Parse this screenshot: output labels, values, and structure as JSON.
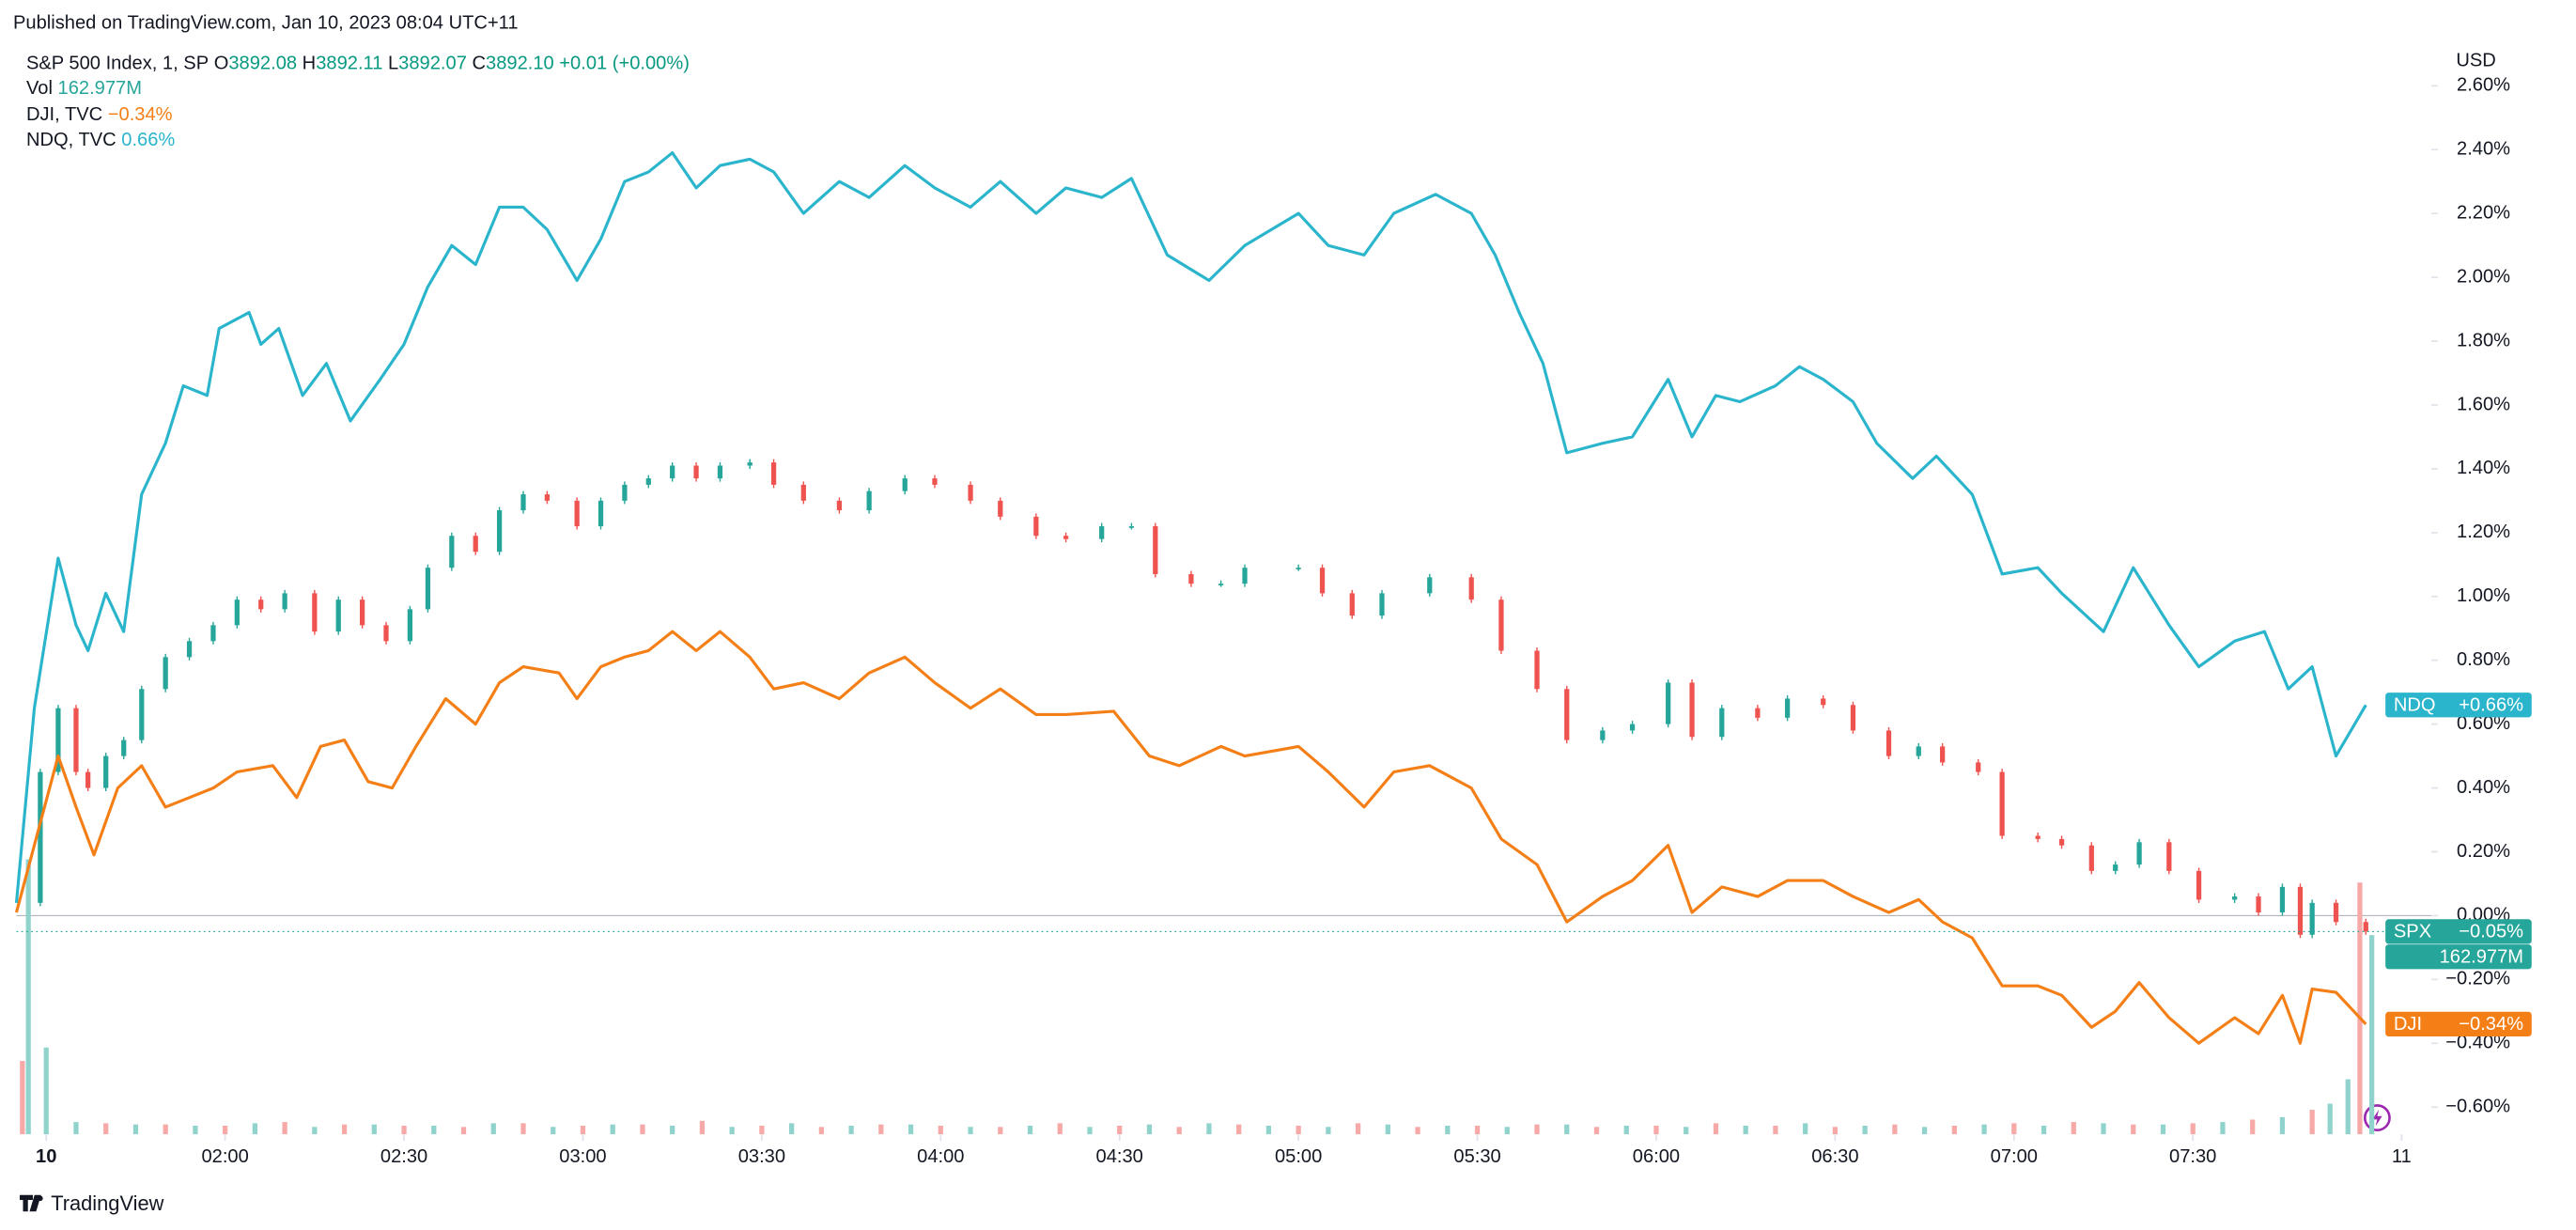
{
  "header": "Published on TradingView.com, Jan 10, 2023 08:04 UTC+11",
  "brand": "TradingView",
  "chart_data": {
    "type": "line",
    "currency": "USD",
    "main_legend": {
      "name": "S&P 500 Index, 1, SP",
      "ohlc": [
        [
          "O",
          "3892.08"
        ],
        [
          "H",
          "3892.11"
        ],
        [
          "L",
          "3892.07"
        ],
        [
          "C",
          "3892.10"
        ]
      ],
      "change": "+0.01 (+0.00%)"
    },
    "xlim": [
      -5,
      400
    ],
    "xticks": [
      {
        "value": 0,
        "label": "10"
      },
      {
        "value": 30,
        "label": "02:00"
      },
      {
        "value": 60,
        "label": "02:30"
      },
      {
        "value": 90,
        "label": "03:00"
      },
      {
        "value": 120,
        "label": "03:30"
      },
      {
        "value": 150,
        "label": "04:00"
      },
      {
        "value": 180,
        "label": "04:30"
      },
      {
        "value": 210,
        "label": "05:00"
      },
      {
        "value": 240,
        "label": "05:30"
      },
      {
        "value": 270,
        "label": "06:00"
      },
      {
        "value": 300,
        "label": "06:30"
      },
      {
        "value": 330,
        "label": "07:00"
      },
      {
        "value": 360,
        "label": "07:30"
      },
      {
        "value": 395,
        "label": "11"
      }
    ],
    "ylim": [
      -0.685,
      2.713
    ],
    "yticks": [
      {
        "value": 2.6,
        "label": "2.60%"
      },
      {
        "value": 2.4,
        "label": "2.40%"
      },
      {
        "value": 2.2,
        "label": "2.20%"
      },
      {
        "value": 2.0,
        "label": "2.00%"
      },
      {
        "value": 1.8,
        "label": "1.80%"
      },
      {
        "value": 1.6,
        "label": "1.60%"
      },
      {
        "value": 1.4,
        "label": "1.40%"
      },
      {
        "value": 1.2,
        "label": "1.20%"
      },
      {
        "value": 1.0,
        "label": "1.00%"
      },
      {
        "value": 0.8,
        "label": "0.80%"
      },
      {
        "value": 0.6,
        "label": "0.60%"
      },
      {
        "value": 0.4,
        "label": "0.40%"
      },
      {
        "value": 0.2,
        "label": "0.20%"
      },
      {
        "value": 0,
        "label": "0.00%"
      },
      {
        "value": -0.2,
        "label": "−0.20%"
      },
      {
        "value": -0.4,
        "label": "−0.40%"
      },
      {
        "value": -0.6,
        "label": "−0.60%"
      }
    ],
    "series": [
      {
        "name": "SPX",
        "type": "candlestick",
        "color": "#26a69a",
        "down_color": "#ef5350",
        "tag_value": "−0.05%",
        "x": [
          -4,
          -1,
          2,
          5,
          7,
          10,
          13,
          16,
          20,
          24,
          28,
          32,
          36,
          40,
          45,
          49,
          53,
          57,
          61,
          64,
          68,
          72,
          76,
          80,
          84,
          89,
          93,
          97,
          101,
          105,
          109,
          113,
          118,
          122,
          127,
          133,
          138,
          144,
          149,
          155,
          160,
          166,
          171,
          177,
          182,
          186,
          192,
          197,
          201,
          210,
          214,
          219,
          224,
          232,
          239,
          244,
          250,
          255,
          261,
          266,
          272,
          276,
          281,
          287,
          292,
          298,
          303,
          309,
          314,
          318,
          324,
          328,
          334,
          338,
          343,
          347,
          351,
          356,
          361,
          367,
          371,
          375,
          378,
          380,
          384,
          389
        ],
        "values": [
          0.04,
          0.45,
          0.65,
          0.45,
          0.4,
          0.5,
          0.55,
          0.71,
          0.81,
          0.86,
          0.91,
          0.99,
          0.96,
          1.01,
          0.89,
          0.99,
          0.91,
          0.86,
          0.96,
          1.09,
          1.19,
          1.14,
          1.27,
          1.32,
          1.3,
          1.22,
          1.3,
          1.35,
          1.37,
          1.41,
          1.37,
          1.41,
          1.42,
          1.35,
          1.3,
          1.27,
          1.33,
          1.37,
          1.35,
          1.3,
          1.25,
          1.19,
          1.18,
          1.22,
          1.22,
          1.07,
          1.04,
          1.04,
          1.09,
          1.09,
          1.01,
          0.94,
          1.01,
          1.06,
          0.99,
          0.83,
          0.71,
          0.55,
          0.58,
          0.6,
          0.73,
          0.56,
          0.65,
          0.62,
          0.68,
          0.66,
          0.58,
          0.5,
          0.53,
          0.48,
          0.45,
          0.25,
          0.24,
          0.22,
          0.14,
          0.16,
          0.23,
          0.14,
          0.05,
          0.06,
          0.01,
          0.09,
          -0.06,
          0.04,
          -0.02,
          -0.05
        ]
      },
      {
        "name": "DJI",
        "legend_name": "DJI, TVC",
        "legend_value": "−0.34%",
        "type": "line",
        "color": "#f57f17",
        "tag_value": "−0.34%",
        "x": [
          -5,
          -1,
          2,
          5,
          8,
          12,
          16,
          20,
          24,
          28,
          32,
          38,
          42,
          46,
          50,
          54,
          58,
          62,
          67,
          72,
          76,
          80,
          86,
          89,
          93,
          97,
          101,
          105,
          109,
          113,
          118,
          122,
          127,
          133,
          138,
          144,
          149,
          155,
          160,
          166,
          171,
          179,
          185,
          190,
          197,
          201,
          210,
          215,
          221,
          226,
          232,
          239,
          244,
          250,
          255,
          261,
          266,
          272,
          276,
          281,
          287,
          292,
          298,
          303,
          309,
          314,
          318,
          323,
          328,
          334,
          338,
          343,
          347,
          351,
          356,
          361,
          367,
          371,
          375,
          378,
          380,
          384,
          389
        ],
        "values": [
          0.01,
          0.29,
          0.5,
          0.34,
          0.19,
          0.4,
          0.47,
          0.34,
          0.37,
          0.4,
          0.45,
          0.47,
          0.37,
          0.53,
          0.55,
          0.42,
          0.4,
          0.53,
          0.68,
          0.6,
          0.73,
          0.78,
          0.76,
          0.68,
          0.78,
          0.81,
          0.83,
          0.89,
          0.83,
          0.89,
          0.81,
          0.71,
          0.73,
          0.68,
          0.76,
          0.81,
          0.73,
          0.65,
          0.71,
          0.63,
          0.63,
          0.64,
          0.5,
          0.47,
          0.53,
          0.5,
          0.53,
          0.45,
          0.34,
          0.45,
          0.47,
          0.4,
          0.24,
          0.16,
          -0.02,
          0.06,
          0.11,
          0.22,
          0.01,
          0.09,
          0.06,
          0.11,
          0.11,
          0.06,
          0.01,
          0.05,
          -0.02,
          -0.07,
          -0.22,
          -0.22,
          -0.25,
          -0.35,
          -0.3,
          -0.21,
          -0.32,
          -0.4,
          -0.32,
          -0.37,
          -0.25,
          -0.4,
          -0.23,
          -0.24,
          -0.34
        ]
      },
      {
        "name": "NDQ",
        "legend_name": "NDQ, TVC",
        "legend_value": "0.66%",
        "type": "line",
        "color": "#2ab5cc",
        "tag_value": "+0.66%",
        "x": [
          -5,
          -2,
          2,
          5,
          7,
          10,
          13,
          16,
          20,
          23,
          27,
          29,
          34,
          36,
          39,
          43,
          47,
          51,
          56,
          60,
          64,
          68,
          72,
          76,
          80,
          84,
          89,
          93,
          97,
          101,
          105,
          109,
          113,
          118,
          122,
          127,
          133,
          138,
          144,
          149,
          155,
          160,
          166,
          171,
          177,
          182,
          188,
          195,
          201,
          210,
          215,
          221,
          226,
          233,
          239,
          243,
          247,
          251,
          255,
          261,
          266,
          272,
          276,
          280,
          284,
          290,
          294,
          298,
          303,
          307,
          313,
          317,
          323,
          328,
          334,
          338,
          345,
          350,
          356,
          361,
          367,
          372,
          376,
          380,
          384,
          389
        ],
        "values": [
          0.04,
          0.65,
          1.12,
          0.91,
          0.83,
          1.01,
          0.89,
          1.32,
          1.48,
          1.66,
          1.63,
          1.84,
          1.89,
          1.79,
          1.84,
          1.63,
          1.73,
          1.55,
          1.68,
          1.79,
          1.97,
          2.1,
          2.04,
          2.22,
          2.22,
          2.15,
          1.99,
          2.12,
          2.3,
          2.33,
          2.39,
          2.28,
          2.35,
          2.37,
          2.33,
          2.2,
          2.3,
          2.25,
          2.35,
          2.28,
          2.22,
          2.3,
          2.2,
          2.28,
          2.25,
          2.31,
          2.07,
          1.99,
          2.1,
          2.2,
          2.1,
          2.07,
          2.2,
          2.26,
          2.2,
          2.07,
          1.89,
          1.73,
          1.45,
          1.48,
          1.5,
          1.68,
          1.5,
          1.63,
          1.61,
          1.66,
          1.72,
          1.68,
          1.61,
          1.48,
          1.37,
          1.44,
          1.32,
          1.07,
          1.09,
          1.01,
          0.89,
          1.09,
          0.91,
          0.78,
          0.86,
          0.89,
          0.71,
          0.78,
          0.5,
          0.66
        ]
      }
    ],
    "volume": {
      "name": "Vol",
      "legend_value": "162.977M",
      "tag_value": "162.977M",
      "vlim": [
        0,
        390
      ],
      "series": [
        {
          "color": "#f7a9a7",
          "x": [
            -4,
            10,
            20,
            30,
            40,
            50,
            60,
            70,
            80,
            90,
            100,
            110,
            120,
            130,
            140,
            150,
            160,
            170,
            180,
            190,
            200,
            210,
            220,
            230,
            240,
            250,
            260,
            270,
            280,
            290,
            300,
            310,
            320,
            330,
            340,
            350,
            360,
            370,
            380,
            388
          ],
          "values": [
            60,
            9,
            8,
            7,
            10,
            8,
            7,
            6,
            9,
            7,
            8,
            11,
            7,
            6,
            8,
            7,
            6,
            9,
            7,
            6,
            8,
            7,
            9,
            6,
            7,
            8,
            6,
            7,
            9,
            7,
            6,
            8,
            7,
            9,
            10,
            8,
            9,
            12,
            20,
            206
          ]
        },
        {
          "color": "#8fd3cc",
          "x": [
            -3,
            0,
            5,
            15,
            25,
            35,
            45,
            55,
            65,
            75,
            85,
            95,
            105,
            115,
            125,
            135,
            145,
            155,
            165,
            175,
            185,
            195,
            205,
            215,
            225,
            235,
            245,
            255,
            265,
            275,
            285,
            295,
            305,
            315,
            325,
            335,
            345,
            355,
            365,
            375,
            383,
            386,
            390
          ],
          "values": [
            225,
            71,
            10,
            8,
            7,
            9,
            6,
            8,
            7,
            9,
            6,
            8,
            7,
            6,
            9,
            7,
            8,
            6,
            7,
            6,
            8,
            9,
            7,
            6,
            8,
            7,
            6,
            8,
            7,
            6,
            7,
            9,
            7,
            6,
            8,
            7,
            9,
            8,
            10,
            14,
            25,
            45,
            162.977
          ]
        }
      ]
    }
  }
}
